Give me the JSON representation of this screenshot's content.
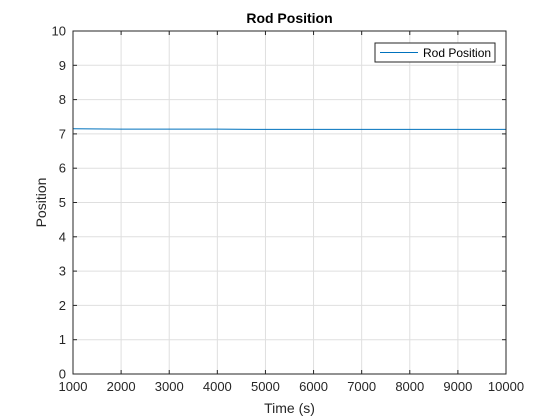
{
  "chart_data": {
    "type": "line",
    "title": "Rod Position",
    "xlabel": "Time (s)",
    "ylabel": "Position",
    "xlim": [
      1000,
      10000
    ],
    "ylim": [
      0,
      10
    ],
    "xticks": [
      1000,
      2000,
      3000,
      4000,
      5000,
      6000,
      7000,
      8000,
      9000,
      10000
    ],
    "yticks": [
      0,
      1,
      2,
      3,
      4,
      5,
      6,
      7,
      8,
      9,
      10
    ],
    "grid": true,
    "legend_position": "top-right",
    "series": [
      {
        "name": "Rod Position",
        "color": "#0072BD",
        "x": [
          1000,
          2000,
          3000,
          4000,
          5000,
          6000,
          7000,
          8000,
          9000,
          10000
        ],
        "y": [
          7.15,
          7.14,
          7.14,
          7.14,
          7.13,
          7.13,
          7.13,
          7.13,
          7.13,
          7.13
        ]
      }
    ]
  }
}
